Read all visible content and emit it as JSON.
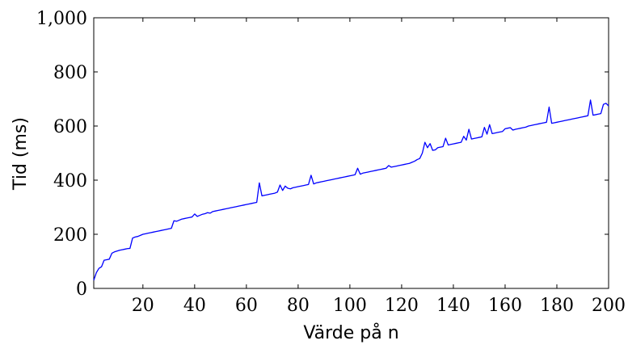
{
  "chart_data": {
    "type": "line",
    "title": "",
    "xlabel": "Värde på n",
    "ylabel": "Tid (ms)",
    "xlim": [
      1,
      200
    ],
    "ylim": [
      0,
      1000
    ],
    "x_ticks": [
      20,
      40,
      60,
      80,
      100,
      120,
      140,
      160,
      180,
      200
    ],
    "x_tick_labels": [
      "20",
      "40",
      "60",
      "80",
      "100",
      "120",
      "140",
      "160",
      "180",
      "200"
    ],
    "y_ticks": [
      0,
      200,
      400,
      600,
      800,
      1000
    ],
    "y_tick_labels": [
      "0",
      "200",
      "400",
      "600",
      "800",
      "1,000"
    ],
    "grid": false,
    "line_color": "#0000ff",
    "series": [
      {
        "x": [
          1,
          2,
          3,
          4,
          5,
          6,
          7,
          8,
          9,
          10,
          11,
          12,
          13,
          14,
          15,
          16,
          17,
          18,
          19,
          20,
          21,
          22,
          23,
          24,
          25,
          26,
          27,
          28,
          29,
          30,
          31,
          32,
          33,
          34,
          35,
          36,
          37,
          38,
          39,
          40,
          41,
          42,
          43,
          44,
          45,
          46,
          47,
          48,
          49,
          50,
          51,
          52,
          53,
          54,
          55,
          56,
          57,
          58,
          59,
          60,
          61,
          62,
          63,
          64,
          65,
          66,
          67,
          68,
          69,
          70,
          71,
          72,
          73,
          74,
          75,
          76,
          77,
          78,
          79,
          80,
          81,
          82,
          83,
          84,
          85,
          86,
          87,
          88,
          89,
          90,
          91,
          92,
          93,
          94,
          95,
          96,
          97,
          98,
          99,
          100,
          101,
          102,
          103,
          104,
          105,
          106,
          107,
          108,
          109,
          110,
          111,
          112,
          113,
          114,
          115,
          116,
          117,
          118,
          119,
          120,
          121,
          122,
          123,
          124,
          125,
          126,
          127,
          128,
          129,
          130,
          131,
          132,
          133,
          134,
          135,
          136,
          137,
          138,
          139,
          140,
          141,
          142,
          143,
          144,
          145,
          146,
          147,
          148,
          149,
          150,
          151,
          152,
          153,
          154,
          155,
          156,
          157,
          158,
          159,
          160,
          161,
          162,
          163,
          164,
          165,
          166,
          167,
          168,
          169,
          170,
          171,
          172,
          173,
          174,
          175,
          176,
          177,
          178,
          179,
          180,
          181,
          182,
          183,
          184,
          185,
          186,
          187,
          188,
          189,
          190,
          191,
          192,
          193,
          194,
          195,
          196,
          197,
          198,
          199,
          200
        ],
        "values": [
          30,
          58,
          74,
          80,
          104,
          106,
          108,
          130,
          135,
          138,
          141,
          143,
          145,
          147,
          148,
          186,
          190,
          192,
          196,
          200,
          202,
          204,
          206,
          208,
          210,
          212,
          214,
          216,
          218,
          220,
          222,
          250,
          248,
          252,
          256,
          258,
          260,
          262,
          264,
          275,
          266,
          270,
          274,
          276,
          280,
          278,
          284,
          286,
          288,
          290,
          292,
          294,
          296,
          298,
          300,
          302,
          304,
          306,
          308,
          310,
          312,
          314,
          316,
          318,
          390,
          342,
          344,
          346,
          348,
          350,
          352,
          356,
          382,
          362,
          378,
          370,
          368,
          372,
          374,
          376,
          378,
          380,
          382,
          384,
          418,
          386,
          390,
          392,
          394,
          396,
          398,
          400,
          402,
          404,
          406,
          408,
          410,
          412,
          414,
          416,
          418,
          420,
          444,
          422,
          426,
          428,
          430,
          432,
          434,
          436,
          438,
          440,
          442,
          444,
          454,
          448,
          450,
          452,
          454,
          456,
          458,
          460,
          462,
          466,
          470,
          476,
          480,
          500,
          540,
          520,
          535,
          510,
          512,
          520,
          522,
          524,
          555,
          530,
          532,
          534,
          536,
          538,
          540,
          562,
          548,
          588,
          552,
          554,
          556,
          558,
          560,
          595,
          570,
          605,
          572,
          574,
          576,
          578,
          580,
          590,
          592,
          594,
          585,
          588,
          590,
          592,
          594,
          596,
          600,
          602,
          604,
          606,
          608,
          610,
          612,
          614,
          670,
          610,
          612,
          614,
          616,
          618,
          620,
          622,
          624,
          626,
          628,
          630,
          632,
          634,
          636,
          638,
          696,
          640,
          642,
          644,
          646,
          680,
          684,
          674
        ]
      }
    ]
  }
}
